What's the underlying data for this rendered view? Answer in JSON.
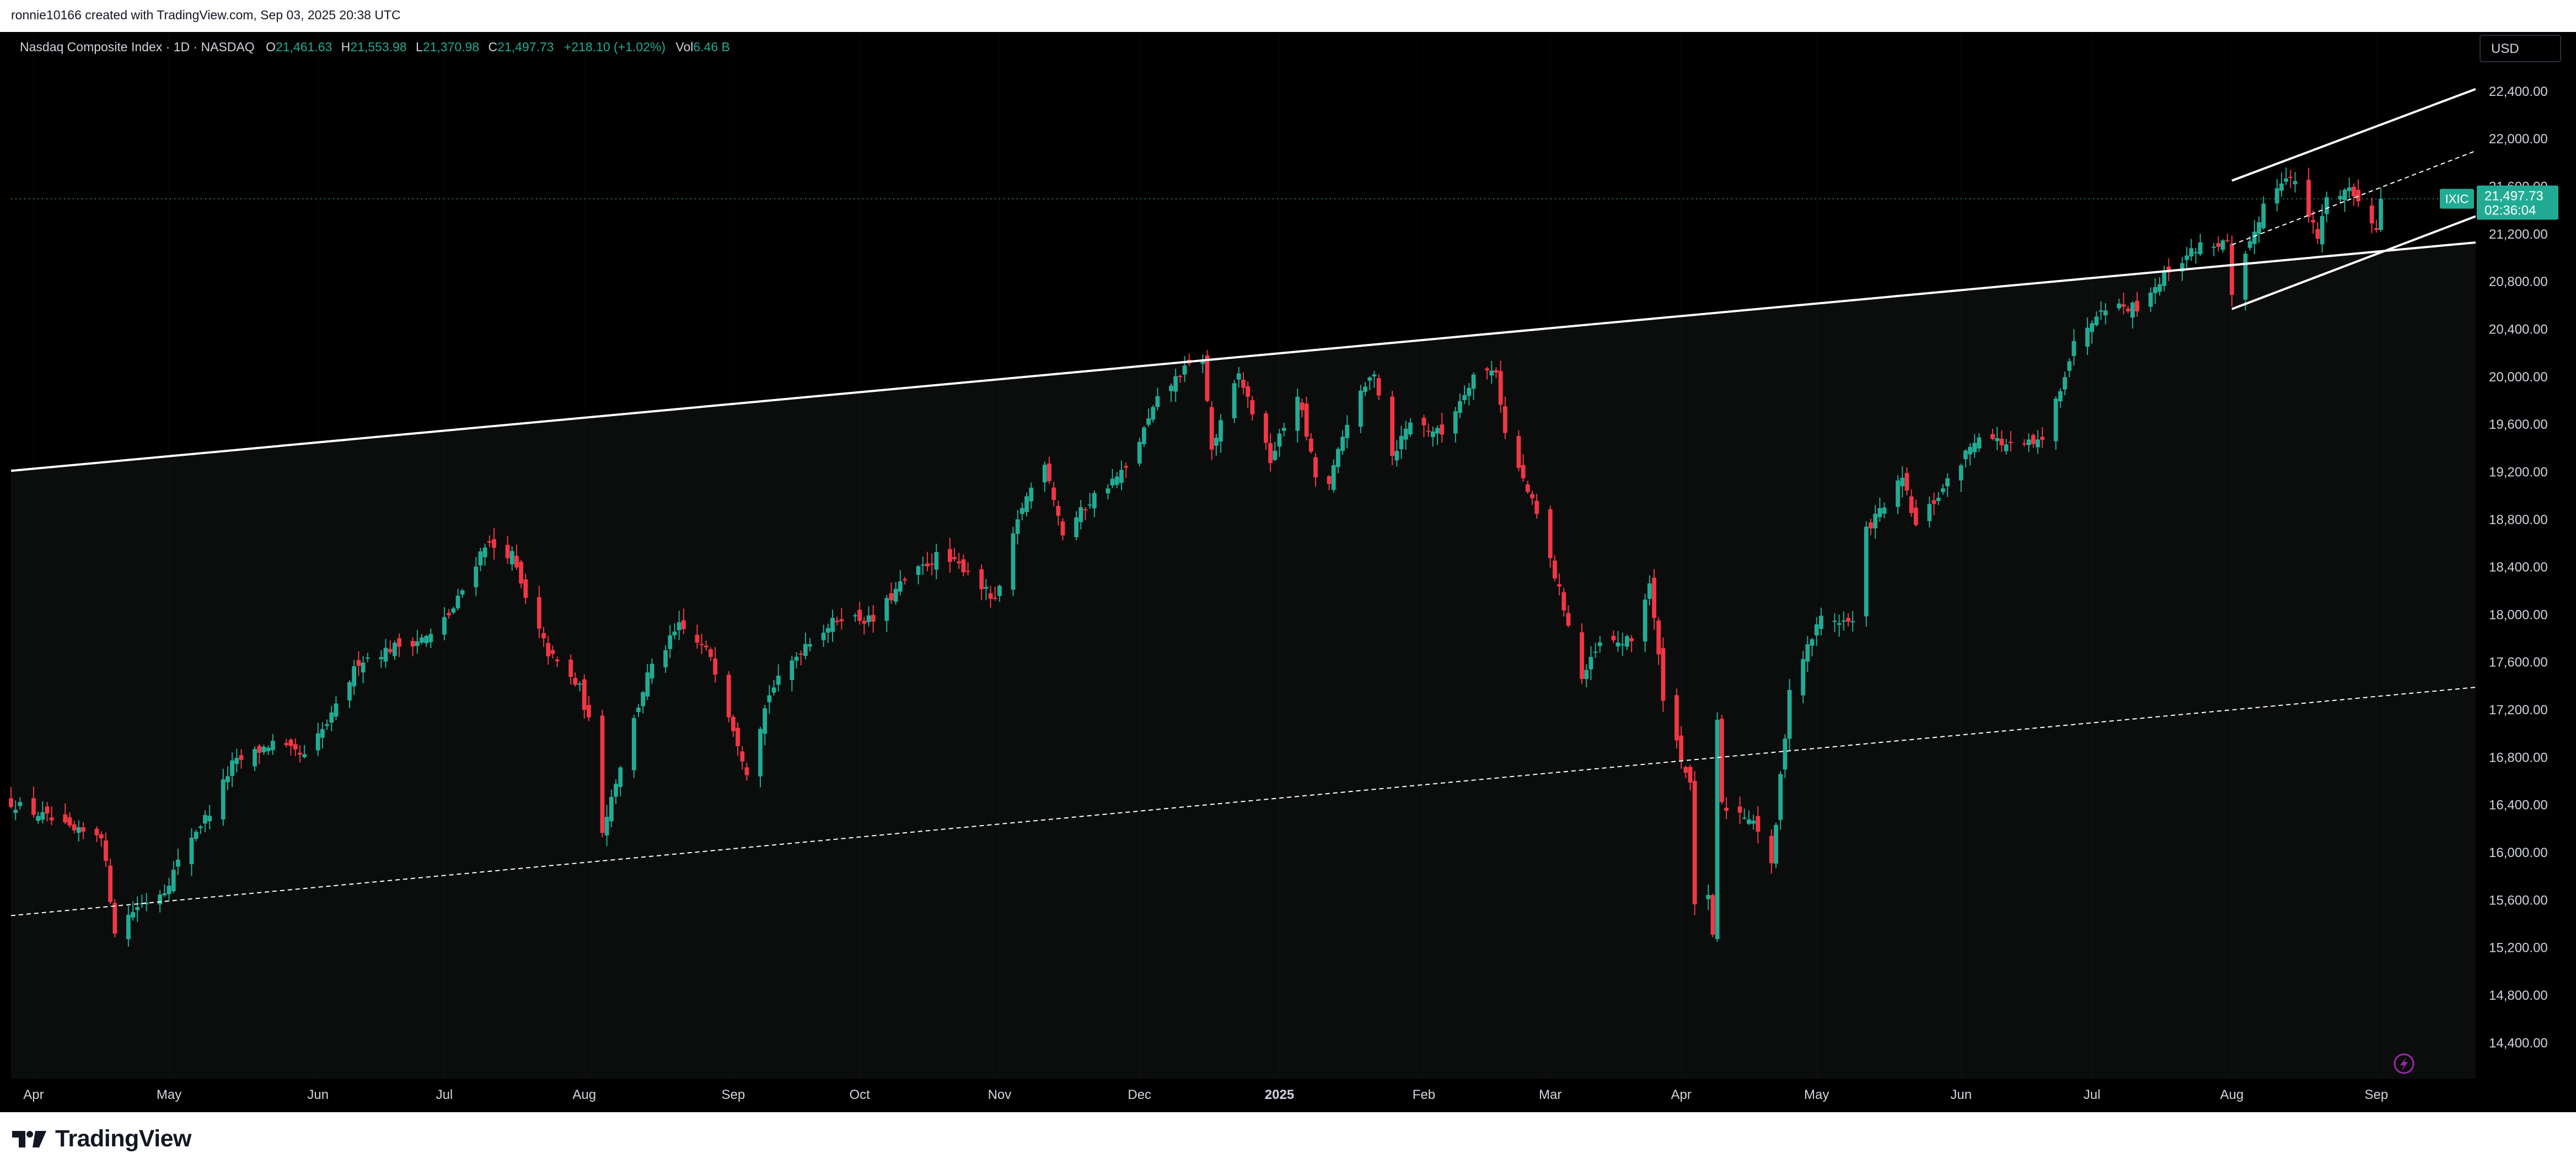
{
  "header": {
    "credit": "ronnie10166 created with TradingView.com, Sep 03, 2025 20:38 UTC"
  },
  "legend": {
    "title": "Nasdaq Composite Index · 1D · NASDAQ",
    "open_label": "O",
    "open": "21,461.63",
    "high_label": "H",
    "high": "21,553.98",
    "low_label": "L",
    "low": "21,370.98",
    "close_label": "C",
    "close": "21,497.73",
    "change": "+218.10 (+1.02%)",
    "vol_label": "Vol",
    "vol": "6.46 B"
  },
  "currency_button": "USD",
  "price_tag": {
    "symbol": "IXIC",
    "price": "21,497.73",
    "countdown": "02:36:04"
  },
  "footer": {
    "brand": "TradingView"
  },
  "colors": {
    "up": "#22ab94",
    "down": "#f23645",
    "background": "#000000",
    "shaded_region": "#0b0d0c",
    "trendline": "#ffffff",
    "text": "#d1d4dc"
  },
  "chart_data": {
    "type": "candlestick",
    "symbol": "IXIC",
    "interval": "1D",
    "y_axis": {
      "ticks": [
        14400,
        14800,
        15200,
        15600,
        16000,
        16400,
        16800,
        17200,
        17600,
        18000,
        18400,
        18800,
        19200,
        19600,
        20000,
        20400,
        20800,
        21200,
        21600,
        22000,
        22400
      ],
      "tick_labels": [
        "14,400.00",
        "14,800.00",
        "15,200.00",
        "15,600.00",
        "16,000.00",
        "16,400.00",
        "16,800.00",
        "17,200.00",
        "17,600.00",
        "18,000.00",
        "18,400.00",
        "18,800.00",
        "19,200.00",
        "19,600.00",
        "20,000.00",
        "20,400.00",
        "20,800.00",
        "21,200.00",
        "21,600.00",
        "22,000.00",
        "22,400.00"
      ],
      "range": [
        14100,
        22900
      ],
      "side": "right"
    },
    "x_axis": {
      "range": [
        "2024-03-27",
        "2025-09-24"
      ],
      "ticks": [
        {
          "date": "2024-04-01",
          "label": "Apr",
          "bold": false
        },
        {
          "date": "2024-05-01",
          "label": "May",
          "bold": false
        },
        {
          "date": "2024-06-03",
          "label": "Jun",
          "bold": false
        },
        {
          "date": "2024-07-01",
          "label": "Jul",
          "bold": false
        },
        {
          "date": "2024-08-01",
          "label": "Aug",
          "bold": false
        },
        {
          "date": "2024-09-03",
          "label": "Sep",
          "bold": false
        },
        {
          "date": "2024-10-01",
          "label": "Oct",
          "bold": false
        },
        {
          "date": "2024-11-01",
          "label": "Nov",
          "bold": false
        },
        {
          "date": "2024-12-02",
          "label": "Dec",
          "bold": false
        },
        {
          "date": "2025-01-02",
          "label": "2025",
          "bold": true
        },
        {
          "date": "2025-02-03",
          "label": "Feb",
          "bold": false
        },
        {
          "date": "2025-03-03",
          "label": "Mar",
          "bold": false
        },
        {
          "date": "2025-04-01",
          "label": "Apr",
          "bold": false
        },
        {
          "date": "2025-05-01",
          "label": "May",
          "bold": false
        },
        {
          "date": "2025-06-02",
          "label": "Jun",
          "bold": false
        },
        {
          "date": "2025-07-01",
          "label": "Jul",
          "bold": false
        },
        {
          "date": "2025-08-01",
          "label": "Aug",
          "bold": false
        },
        {
          "date": "2025-09-02",
          "label": "Sep",
          "bold": false
        }
      ]
    },
    "last_price": 21497.73,
    "close_path": [
      [
        "2024-03-27",
        16420
      ],
      [
        "2024-04-04",
        16290
      ],
      [
        "2024-04-10",
        16170
      ],
      [
        "2024-04-16",
        16160
      ],
      [
        "2024-04-19",
        15350
      ],
      [
        "2024-04-24",
        15550
      ],
      [
        "2024-04-30",
        15690
      ],
      [
        "2024-05-06",
        16140
      ],
      [
        "2024-05-10",
        16340
      ],
      [
        "2024-05-15",
        16740
      ],
      [
        "2024-05-24",
        16920
      ],
      [
        "2024-05-31",
        16800
      ],
      [
        "2024-06-06",
        17140
      ],
      [
        "2024-06-12",
        17610
      ],
      [
        "2024-06-20",
        17730
      ],
      [
        "2024-06-28",
        17820
      ],
      [
        "2024-07-03",
        18050
      ],
      [
        "2024-07-10",
        18600
      ],
      [
        "2024-07-16",
        18500
      ],
      [
        "2024-07-19",
        18120
      ],
      [
        "2024-07-24",
        17680
      ],
      [
        "2024-07-31",
        17380
      ],
      [
        "2024-08-02",
        17100
      ],
      [
        "2024-08-05",
        16200
      ],
      [
        "2024-08-09",
        16740
      ],
      [
        "2024-08-15",
        17490
      ],
      [
        "2024-08-22",
        17900
      ],
      [
        "2024-08-29",
        17660
      ],
      [
        "2024-09-06",
        16690
      ],
      [
        "2024-09-11",
        17340
      ],
      [
        "2024-09-19",
        17760
      ],
      [
        "2024-09-27",
        17990
      ],
      [
        "2024-10-04",
        17950
      ],
      [
        "2024-10-10",
        18250
      ],
      [
        "2024-10-18",
        18490
      ],
      [
        "2024-10-25",
        18380
      ],
      [
        "2024-10-31",
        18100
      ],
      [
        "2024-11-06",
        18910
      ],
      [
        "2024-11-11",
        19300
      ],
      [
        "2024-11-15",
        18680
      ],
      [
        "2024-11-22",
        19000
      ],
      [
        "2024-11-29",
        19220
      ],
      [
        "2024-12-06",
        19800
      ],
      [
        "2024-12-11",
        20030
      ],
      [
        "2024-12-16",
        20170
      ],
      [
        "2024-12-18",
        19390
      ],
      [
        "2024-12-24",
        20020
      ],
      [
        "2024-12-31",
        19300
      ],
      [
        "2025-01-06",
        19860
      ],
      [
        "2025-01-10",
        19160
      ],
      [
        "2025-01-13",
        19090
      ],
      [
        "2025-01-17",
        19630
      ],
      [
        "2025-01-23",
        20050
      ],
      [
        "2025-01-27",
        19340
      ],
      [
        "2025-01-31",
        19630
      ],
      [
        "2025-02-07",
        19520
      ],
      [
        "2025-02-14",
        20020
      ],
      [
        "2025-02-19",
        20060
      ],
      [
        "2025-02-21",
        19520
      ],
      [
        "2025-02-28",
        18840
      ],
      [
        "2025-03-06",
        18070
      ],
      [
        "2025-03-10",
        17460
      ],
      [
        "2025-03-14",
        17750
      ],
      [
        "2025-03-21",
        17780
      ],
      [
        "2025-03-25",
        18270
      ],
      [
        "2025-03-28",
        17320
      ],
      [
        "2025-04-03",
        16550
      ],
      [
        "2025-04-04",
        15590
      ],
      [
        "2025-04-07",
        15600
      ],
      [
        "2025-04-08",
        15270
      ],
      [
        "2025-04-09",
        17120
      ],
      [
        "2025-04-10",
        16390
      ],
      [
        "2025-04-17",
        16290
      ],
      [
        "2025-04-21",
        15870
      ],
      [
        "2025-04-25",
        17380
      ],
      [
        "2025-05-02",
        17980
      ],
      [
        "2025-05-09",
        17930
      ],
      [
        "2025-05-12",
        18710
      ],
      [
        "2025-05-20",
        19140
      ],
      [
        "2025-05-23",
        18740
      ],
      [
        "2025-05-30",
        19110
      ],
      [
        "2025-06-06",
        19530
      ],
      [
        "2025-06-13",
        19410
      ],
      [
        "2025-06-20",
        19450
      ],
      [
        "2025-06-27",
        20270
      ],
      [
        "2025-07-03",
        20600
      ],
      [
        "2025-07-11",
        20590
      ],
      [
        "2025-07-18",
        20900
      ],
      [
        "2025-07-25",
        21110
      ],
      [
        "2025-07-31",
        21120
      ],
      [
        "2025-08-01",
        20650
      ],
      [
        "2025-08-08",
        21450
      ],
      [
        "2025-08-13",
        21710
      ],
      [
        "2025-08-15",
        21620
      ],
      [
        "2025-08-20",
        21170
      ],
      [
        "2025-08-22",
        21500
      ],
      [
        "2025-08-27",
        21590
      ],
      [
        "2025-08-29",
        21460
      ],
      [
        "2025-09-02",
        21280
      ],
      [
        "2025-09-03",
        21497.73
      ]
    ],
    "trendlines": [
      {
        "style": "solid",
        "from": [
          "2024-03-27",
          19210
        ],
        "to": [
          "2025-09-24",
          21130
        ]
      },
      {
        "style": "dashed",
        "from": [
          "2024-03-27",
          15470
        ],
        "to": [
          "2025-09-24",
          17390
        ]
      },
      {
        "style": "solid",
        "from": [
          "2025-08-01",
          21650
        ],
        "to": [
          "2025-09-24",
          22420
        ]
      },
      {
        "style": "solid",
        "from": [
          "2025-08-01",
          20570
        ],
        "to": [
          "2025-09-24",
          21350
        ]
      },
      {
        "style": "dashed",
        "from": [
          "2025-08-01",
          21110
        ],
        "to": [
          "2025-09-24",
          21900
        ]
      }
    ]
  }
}
